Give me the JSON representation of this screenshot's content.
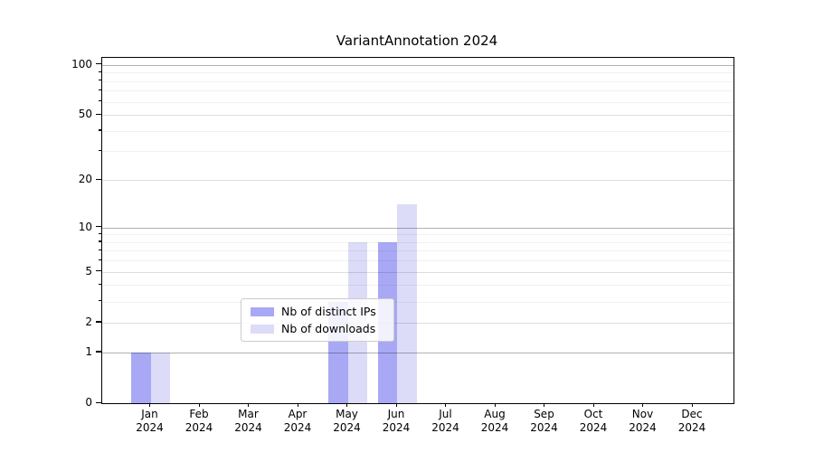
{
  "title": "VariantAnnotation 2024",
  "chart_data": {
    "type": "bar",
    "title": "VariantAnnotation 2024",
    "categories": [
      "Jan",
      "Feb",
      "Mar",
      "Apr",
      "May",
      "Jun",
      "Jul",
      "Aug",
      "Sep",
      "Oct",
      "Nov",
      "Dec"
    ],
    "x_year": "2024",
    "series": [
      {
        "name": "Nb of distinct IPs",
        "color": "#a8a8f5",
        "values": [
          1,
          0,
          0,
          0,
          3,
          8,
          0,
          0,
          0,
          0,
          0,
          0
        ]
      },
      {
        "name": "Nb of downloads",
        "color": "#dcdcf8",
        "values": [
          1,
          0,
          0,
          0,
          8,
          14,
          0,
          0,
          0,
          0,
          0,
          0
        ]
      }
    ],
    "y_scale": "log1p",
    "y_ticks": [
      0,
      1,
      2,
      5,
      10,
      20,
      50,
      100
    ],
    "y_minor_gridlines": [
      3,
      4,
      6,
      7,
      8,
      9,
      30,
      40,
      60,
      70,
      80,
      90
    ],
    "ylim": [
      0,
      110
    ],
    "grid": true,
    "legend_position": "lower center",
    "axis_color": "#000000",
    "background_color": "#ffffff"
  }
}
